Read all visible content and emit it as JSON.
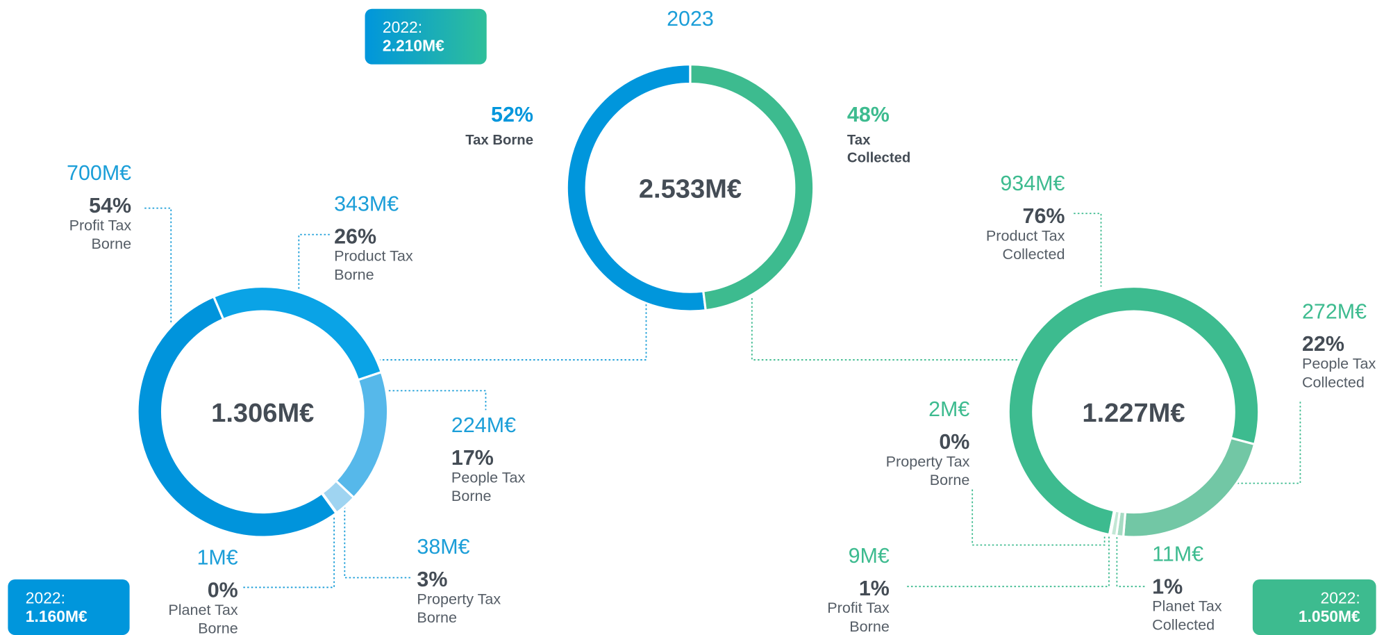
{
  "chart_data": [
    {
      "type": "donut",
      "title": "2023",
      "total_label": "2.533M€",
      "previous_year": "2022:",
      "previous_total": "2.210M€",
      "categories": [
        "Tax Borne",
        "Tax Collected"
      ],
      "values": [
        52,
        48
      ],
      "value_labels": [
        "52%",
        "48%"
      ],
      "colors": [
        "#0096dc",
        "#3dbb8f"
      ]
    },
    {
      "type": "donut",
      "total_label": "1.306M€",
      "previous_year": "2022:",
      "previous_total": "1.160M€",
      "categories": [
        "Profit Tax Borne",
        "Product Tax Borne",
        "People Tax Borne",
        "Property Tax Borne",
        "Planet Tax Borne"
      ],
      "values": [
        700,
        343,
        224,
        38,
        1
      ],
      "value_labels": [
        "700M€",
        "343M€",
        "224M€",
        "38M€",
        "1M€"
      ],
      "shares": [
        54,
        26,
        17,
        3,
        0
      ],
      "share_labels": [
        "54%",
        "26%",
        "17%",
        "3%",
        "0%"
      ],
      "colors": [
        "#0094dc",
        "#0aa3e6",
        "#56b8ea",
        "#9fd4f1",
        "#cfe9f7"
      ]
    },
    {
      "type": "donut",
      "total_label": "1.227M€",
      "previous_year": "2022:",
      "previous_total": "1.050M€",
      "categories": [
        "Product Tax Collected",
        "People Tax Collected",
        "Planet Tax Collected",
        "Profit Tax Borne",
        "Property Tax Borne"
      ],
      "values": [
        934,
        272,
        11,
        9,
        2
      ],
      "value_labels": [
        "934M€",
        "272M€",
        "11M€",
        "9M€",
        "2M€"
      ],
      "shares": [
        76,
        22,
        1,
        1,
        0
      ],
      "share_labels": [
        "76%",
        "22%",
        "1%",
        "1%",
        "0%"
      ],
      "colors": [
        "#3dbb8f",
        "#72c7a5",
        "#a6dbc3",
        "#c3e7d5",
        "#e0f2e9"
      ]
    }
  ]
}
